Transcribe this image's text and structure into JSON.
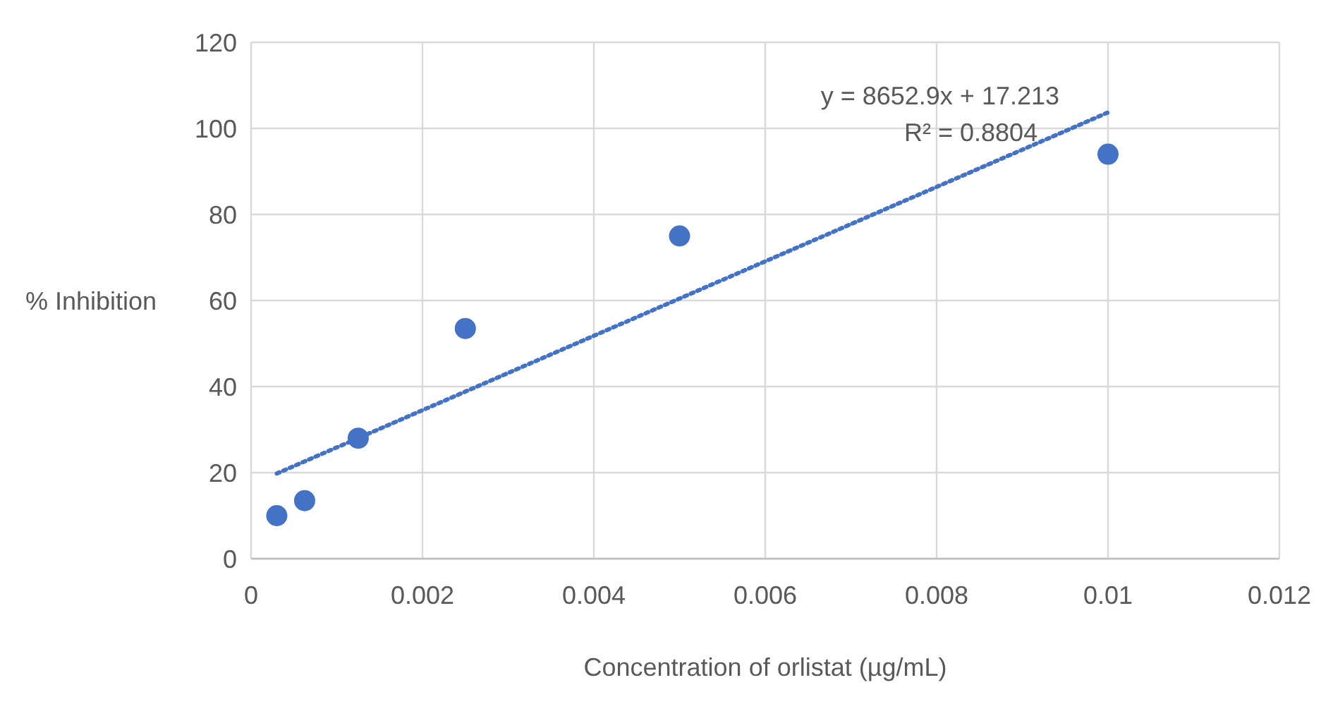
{
  "chart_data": {
    "type": "scatter",
    "xlabel": "Concentration of orlistat (µg/mL)",
    "ylabel": "% Inhibition",
    "x": [
      0.0003,
      0.000625,
      0.00125,
      0.0025,
      0.005,
      0.01
    ],
    "series": [
      {
        "color": "#4472c4",
        "marker": "circle",
        "values": [
          10,
          13.5,
          28,
          53.5,
          75,
          94
        ]
      },
      {
        "type": "line",
        "color": "#4472c4",
        "line_style": "dotted",
        "marker": "none",
        "x": [
          0.0003,
          0.01
        ],
        "values": [
          19.8,
          103.7
        ]
      }
    ],
    "annotations": [
      "y = 8652.9x + 17.213",
      "R² = 0.8804"
    ],
    "xlim": [
      0,
      0.012
    ],
    "xticks": [
      0,
      0.002,
      0.004,
      0.006,
      0.008,
      0.01,
      0.012
    ],
    "ylim": [
      0,
      120
    ],
    "yticks": [
      0,
      20,
      40,
      60,
      80,
      100,
      120
    ],
    "grid": true
  }
}
